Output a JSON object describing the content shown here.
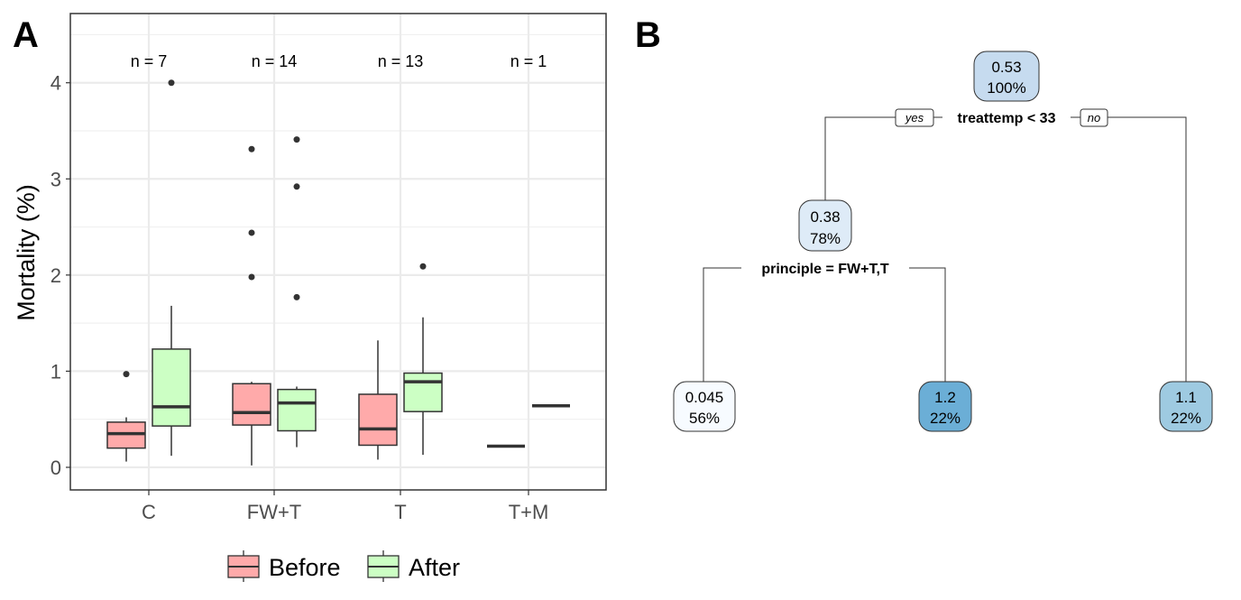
{
  "panels": {
    "a_label": "A",
    "b_label": "B"
  },
  "chart_data": {
    "type": "boxplot",
    "ylabel": "Mortality (%)",
    "xlabel": "",
    "ylim": [
      -0.235,
      4.72
    ],
    "yticks": [
      "0",
      "1",
      "2",
      "3",
      "4"
    ],
    "grid": true,
    "legend_position": "bottom",
    "categories": [
      "C",
      "FW+T",
      "T",
      "T+M"
    ],
    "n_labels": [
      "n = 7",
      "n = 14",
      "n = 13",
      "n = 1"
    ],
    "series": [
      {
        "name": "Before",
        "color": "#ffaaaa",
        "boxes": [
          {
            "min": 0.06,
            "q1": 0.2,
            "median": 0.35,
            "q3": 0.47,
            "max": 0.52,
            "outliers": [
              0.97
            ]
          },
          {
            "min": 0.02,
            "q1": 0.44,
            "median": 0.57,
            "q3": 0.87,
            "max": 0.89,
            "outliers": [
              3.31,
              2.44,
              1.98
            ]
          },
          {
            "min": 0.08,
            "q1": 0.23,
            "median": 0.4,
            "q3": 0.76,
            "max": 1.32,
            "outliers": []
          },
          {
            "min": 0.22,
            "q1": 0.22,
            "median": 0.22,
            "q3": 0.22,
            "max": 0.22,
            "outliers": []
          }
        ]
      },
      {
        "name": "After",
        "color": "#ccffc4",
        "boxes": [
          {
            "min": 0.12,
            "q1": 0.43,
            "median": 0.63,
            "q3": 1.23,
            "max": 1.68,
            "outliers": [
              4.0
            ]
          },
          {
            "min": 0.21,
            "q1": 0.38,
            "median": 0.67,
            "q3": 0.81,
            "max": 0.84,
            "outliers": [
              3.41,
              2.92,
              1.77
            ]
          },
          {
            "min": 0.13,
            "q1": 0.58,
            "median": 0.89,
            "q3": 0.98,
            "max": 1.56,
            "outliers": [
              2.09
            ]
          },
          {
            "min": 0.64,
            "q1": 0.64,
            "median": 0.64,
            "q3": 0.64,
            "max": 0.64,
            "outliers": []
          }
        ]
      }
    ]
  },
  "tree": {
    "root": {
      "value": "0.53",
      "percent": "100%",
      "color": "#c6dbef"
    },
    "split1": {
      "label": "treattemp < 33",
      "yes": "yes",
      "no": "no"
    },
    "node2": {
      "value": "0.38",
      "percent": "78%",
      "color": "#deebf7"
    },
    "split2": {
      "label": "principle = FW+T,T"
    },
    "leaves": [
      {
        "value": "0.045",
        "percent": "56%",
        "color": "#f7fbff"
      },
      {
        "value": "1.2",
        "percent": "22%",
        "color": "#6baed6"
      },
      {
        "value": "1.1",
        "percent": "22%",
        "color": "#9ecae1"
      }
    ]
  }
}
